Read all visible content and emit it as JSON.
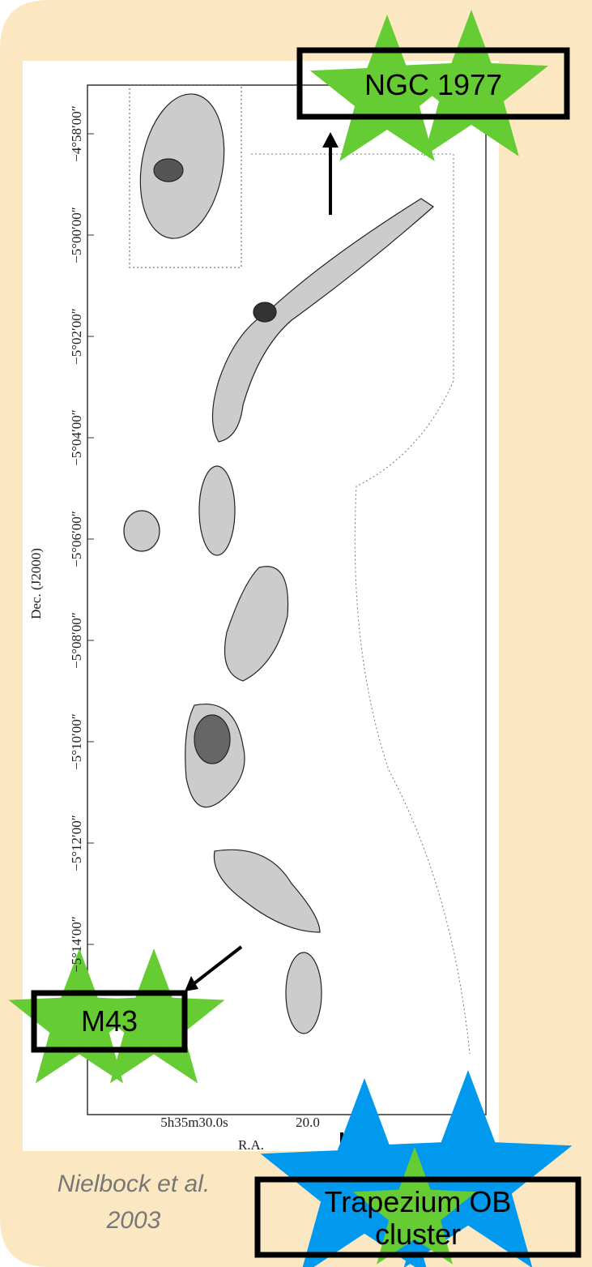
{
  "figure": {
    "ytick_labels": [
      "−4°58′00″",
      "−5°00′00″",
      "−5°02′00″",
      "−5°04′00″",
      "−5°06′00″",
      "−5°08′00″",
      "−5°10′00″",
      "−5°12′00″",
      "−5°14′00″"
    ],
    "ylabel": "Dec. (J2000)",
    "xtick_labels": [
      "5h35m30.0s",
      "20.0"
    ],
    "xlabel": "R.A."
  },
  "labels": {
    "ngc": "NGC 1977",
    "m43": "M43",
    "trapezium": [
      "Trapezium OB",
      "cluster"
    ]
  },
  "credit": [
    "Nielbock et al.",
    "2003"
  ]
}
